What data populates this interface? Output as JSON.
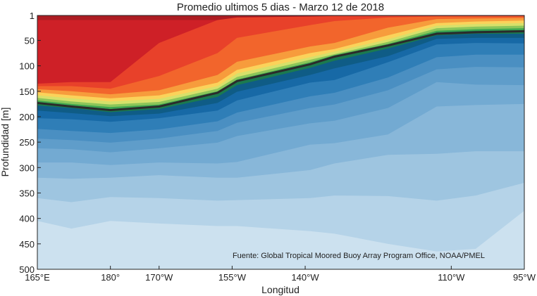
{
  "chart_data": {
    "type": "area",
    "title": "Promedio ultimos 5 dias - Marzo 12 de 2018",
    "xlabel": "Longitud",
    "ylabel": "Profundidad [m]",
    "xlim": [
      165,
      265
    ],
    "ylim": [
      500,
      1
    ],
    "x_ticks": [
      {
        "value": 165,
        "label": "165°E"
      },
      {
        "value": 180,
        "label": "180°"
      },
      {
        "value": 190,
        "label": "170°W"
      },
      {
        "value": 205,
        "label": "155°W"
      },
      {
        "value": 220,
        "label": "140°W"
      },
      {
        "value": 250,
        "label": "110°W"
      },
      {
        "value": 265,
        "label": "95°W"
      }
    ],
    "y_ticks": [
      {
        "value": 1,
        "label": "1"
      },
      {
        "value": 50,
        "label": "50"
      },
      {
        "value": 100,
        "label": "100"
      },
      {
        "value": 150,
        "label": "150"
      },
      {
        "value": 200,
        "label": "200"
      },
      {
        "value": 250,
        "label": "250"
      },
      {
        "value": 300,
        "label": "300"
      },
      {
        "value": 350,
        "label": "350"
      },
      {
        "value": 400,
        "label": "400"
      },
      {
        "value": 450,
        "label": "450"
      },
      {
        "value": 500,
        "label": "500"
      }
    ],
    "annotation": "Fuente: Global Tropical Moored Buoy Array Program Office, NOAA/PMEL",
    "x": [
      165,
      172,
      180,
      190,
      202,
      206,
      221,
      226,
      237,
      247,
      255,
      265
    ],
    "thermocline": [
      173,
      180,
      187,
      180,
      153,
      130,
      97,
      82,
      60,
      37,
      34,
      32
    ],
    "band_colors": [
      "#ad1c22",
      "#ce2027",
      "#e8412a",
      "#f2652c",
      "#f79c3c",
      "#fbd25a",
      "#d7e06a",
      "#8cc65a",
      "#3fa64f",
      "#1b7a4f",
      "#0f5c86",
      "#1769a6",
      "#2f7eb7",
      "#4a8fc2",
      "#5f9dca",
      "#73aad2",
      "#88b7d9",
      "#9ec5e0",
      "#b5d3e8",
      "#cce1ef"
    ],
    "band_boundaries": [
      [
        10,
        10,
        10,
        10,
        10,
        10,
        5,
        4,
        3,
        2,
        2,
        2
      ],
      [
        135,
        132,
        132,
        55,
        10,
        5,
        3,
        2,
        2,
        2,
        2,
        2
      ],
      [
        140,
        140,
        145,
        120,
        75,
        45,
        20,
        12,
        5,
        3,
        3,
        3
      ],
      [
        146,
        150,
        156,
        148,
        118,
        92,
        62,
        55,
        25,
        8,
        7,
        6
      ],
      [
        152,
        158,
        164,
        158,
        133,
        108,
        75,
        67,
        40,
        16,
        13,
        11
      ],
      [
        158,
        164,
        170,
        165,
        140,
        115,
        83,
        72,
        48,
        21,
        18,
        16
      ],
      [
        163,
        170,
        176,
        171,
        145,
        122,
        88,
        77,
        53,
        26,
        23,
        21
      ],
      [
        168,
        175,
        181,
        176,
        150,
        127,
        93,
        79,
        57,
        31,
        28,
        26
      ],
      [
        171,
        178,
        185,
        179,
        152,
        129,
        95,
        81,
        59,
        34,
        31,
        30
      ],
      [
        178,
        183,
        191,
        185,
        161,
        138,
        104,
        90,
        66,
        40,
        37,
        37
      ],
      [
        188,
        193,
        199,
        194,
        173,
        151,
        118,
        105,
        81,
        47,
        45,
        45
      ],
      [
        203,
        205,
        210,
        203,
        188,
        168,
        133,
        128,
        93,
        58,
        55,
        56
      ],
      [
        224,
        228,
        232,
        225,
        209,
        192,
        160,
        153,
        123,
        83,
        78,
        78
      ],
      [
        243,
        246,
        251,
        243,
        228,
        212,
        183,
        176,
        148,
        107,
        102,
        103
      ],
      [
        262,
        264,
        270,
        262,
        251,
        238,
        213,
        208,
        183,
        132,
        137,
        138
      ],
      [
        290,
        290,
        295,
        290,
        292,
        289,
        255,
        252,
        235,
        180,
        177,
        175
      ],
      [
        320,
        322,
        320,
        315,
        320,
        320,
        305,
        292,
        275,
        273,
        268,
        268
      ],
      [
        360,
        368,
        358,
        360,
        365,
        364,
        360,
        355,
        356,
        365,
        355,
        330
      ],
      [
        405,
        420,
        405,
        410,
        415,
        415,
        425,
        430,
        450,
        465,
        460,
        385
      ],
      [
        450,
        472,
        458,
        460,
        470,
        475,
        492,
        500,
        500,
        500,
        500,
        440
      ]
    ]
  }
}
